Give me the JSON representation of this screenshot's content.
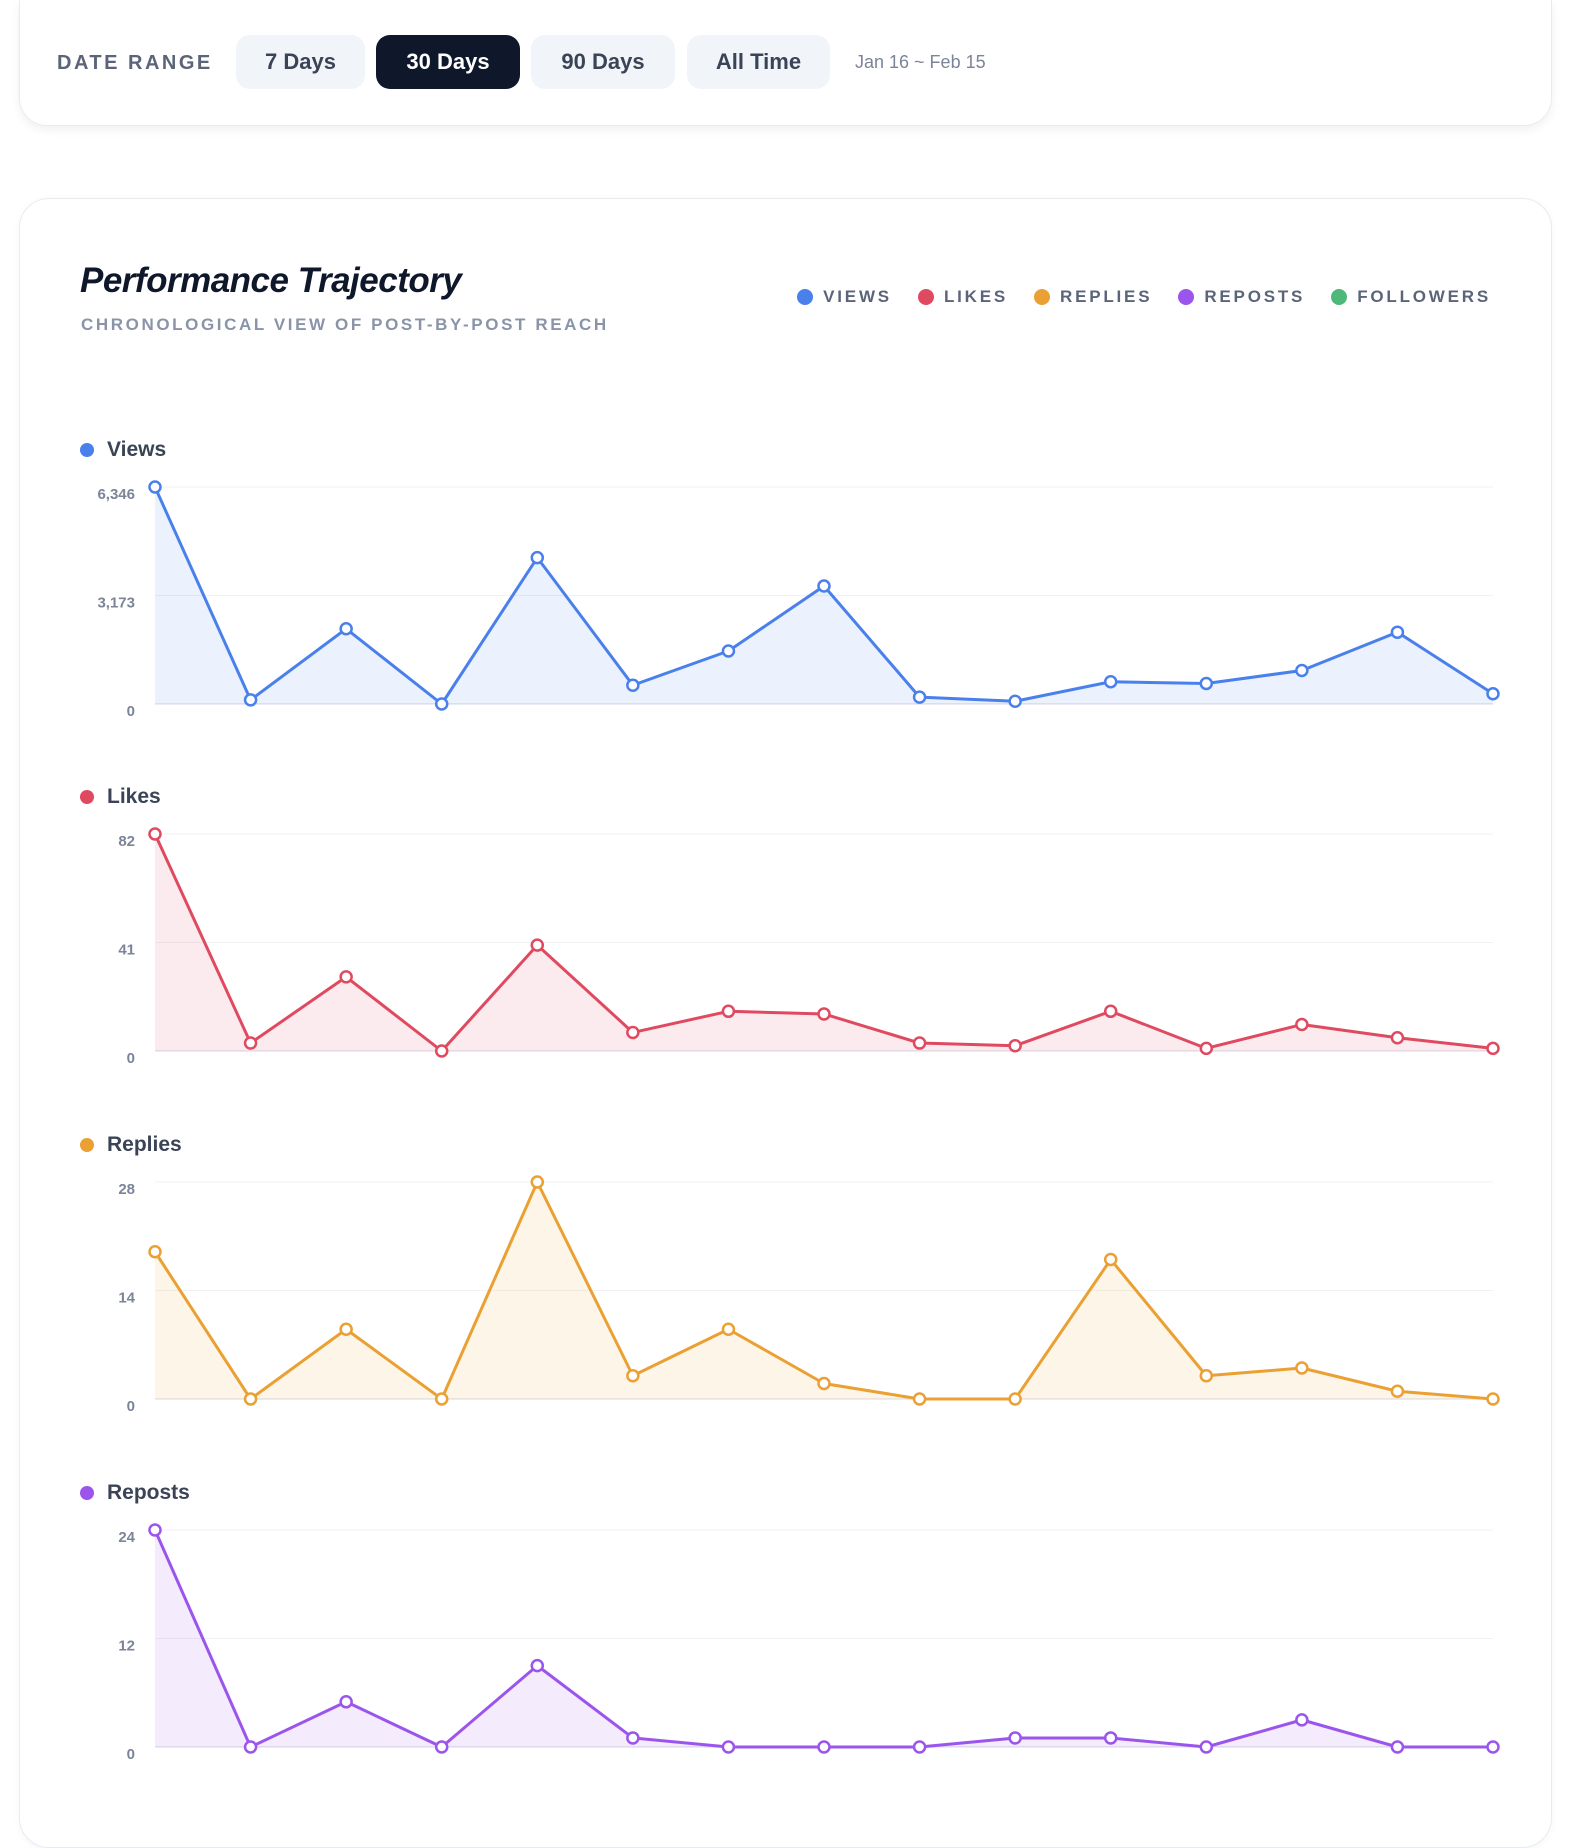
{
  "filter": {
    "label": "DATE RANGE",
    "options": [
      "7 Days",
      "30 Days",
      "90 Days",
      "All Time"
    ],
    "active_index": 1,
    "date_range_text": "Jan 16 ~ Feb 15"
  },
  "chart_header": {
    "title": "Performance Trajectory",
    "subtitle": "CHRONOLOGICAL VIEW OF POST-BY-POST REACH"
  },
  "legend": [
    {
      "label": "VIEWS",
      "color": "#4a80ec"
    },
    {
      "label": "LIKES",
      "color": "#e04a60"
    },
    {
      "label": "REPLIES",
      "color": "#eaa032"
    },
    {
      "label": "REPOSTS",
      "color": "#9b55ec"
    },
    {
      "label": "FOLLOWERS",
      "color": "#4cb97a"
    }
  ],
  "chart_data": [
    {
      "type": "area",
      "title": "Views",
      "color": "#4a80ec",
      "ylim": [
        0,
        6346
      ],
      "ticks": [
        "6,346",
        "3,173",
        "0"
      ],
      "values": [
        6346,
        120,
        2200,
        0,
        4280,
        550,
        1550,
        3450,
        200,
        80,
        650,
        600,
        980,
        2100,
        300
      ]
    },
    {
      "type": "area",
      "title": "Likes",
      "color": "#e04a60",
      "ylim": [
        0,
        82
      ],
      "ticks": [
        "82",
        "41",
        "0"
      ],
      "values": [
        82,
        3,
        28,
        0,
        40,
        7,
        15,
        14,
        3,
        2,
        15,
        1,
        10,
        5,
        1
      ]
    },
    {
      "type": "area",
      "title": "Replies",
      "color": "#eaa032",
      "ylim": [
        0,
        28
      ],
      "ticks": [
        "28",
        "14",
        "0"
      ],
      "values": [
        19,
        0,
        9,
        0,
        28,
        3,
        9,
        2,
        0,
        0,
        18,
        3,
        4,
        1,
        0
      ]
    },
    {
      "type": "area",
      "title": "Reposts",
      "color": "#9b55ec",
      "ylim": [
        0,
        24
      ],
      "ticks": [
        "24",
        "12",
        "0"
      ],
      "values": [
        24,
        0,
        5,
        0,
        9,
        1,
        0,
        0,
        0,
        1,
        1,
        0,
        3,
        0,
        0
      ]
    }
  ]
}
